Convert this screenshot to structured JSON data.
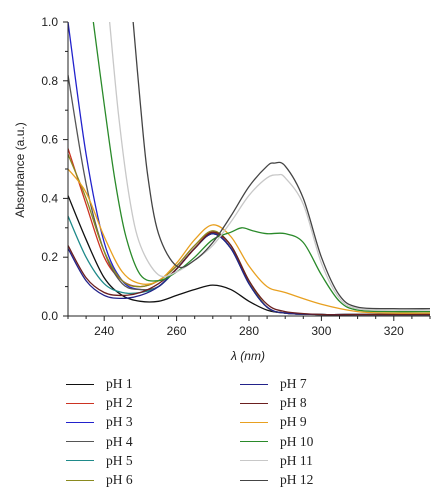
{
  "chart_data": {
    "type": "line",
    "xlabel": "λ (nm)",
    "ylabel": "Absorbance (a.u.)",
    "xlim": [
      230,
      330
    ],
    "ylim": [
      0,
      1.0
    ],
    "x_ticks": [
      240,
      260,
      280,
      300,
      320
    ],
    "y_ticks": [
      "0.0",
      "0.2",
      "0.4",
      "0.6",
      "0.8",
      "1.0"
    ],
    "grid": false,
    "legend_placement": "bottom",
    "series": [
      {
        "name": "pH 1",
        "color": "#111111",
        "x": [
          230,
          235,
          240,
          245,
          250,
          255,
          260,
          265,
          270,
          275,
          280,
          285,
          290,
          300,
          310,
          320,
          330
        ],
        "y": [
          0.41,
          0.26,
          0.13,
          0.07,
          0.05,
          0.05,
          0.07,
          0.09,
          0.105,
          0.09,
          0.05,
          0.02,
          0.01,
          0.005,
          0.005,
          0.005,
          0.005
        ]
      },
      {
        "name": "pH 2",
        "color": "#cc3322",
        "x": [
          230,
          235,
          240,
          245,
          250,
          255,
          260,
          265,
          270,
          275,
          280,
          285,
          290,
          300,
          310,
          320,
          330
        ],
        "y": [
          0.57,
          0.38,
          0.2,
          0.12,
          0.1,
          0.12,
          0.17,
          0.24,
          0.285,
          0.23,
          0.11,
          0.03,
          0.01,
          0.005,
          0.005,
          0.005,
          0.005
        ]
      },
      {
        "name": "pH 3",
        "color": "#2222cc",
        "x": [
          230,
          235,
          240,
          245,
          250,
          255,
          260,
          265,
          270,
          275,
          280,
          285,
          290,
          300,
          310,
          320,
          330
        ],
        "y": [
          1.0,
          0.55,
          0.25,
          0.12,
          0.09,
          0.1,
          0.16,
          0.23,
          0.28,
          0.23,
          0.11,
          0.03,
          0.01,
          0.005,
          0.005,
          0.005,
          0.005
        ]
      },
      {
        "name": "pH 4",
        "color": "#555555",
        "x": [
          230,
          235,
          240,
          245,
          250,
          255,
          260,
          265,
          270,
          275,
          280,
          285,
          290,
          300,
          310,
          320,
          330
        ],
        "y": [
          0.82,
          0.45,
          0.22,
          0.11,
          0.09,
          0.1,
          0.16,
          0.23,
          0.28,
          0.23,
          0.11,
          0.03,
          0.01,
          0.005,
          0.005,
          0.005,
          0.005
        ]
      },
      {
        "name": "pH 5",
        "color": "#1f8a8a",
        "x": [
          230,
          235,
          240,
          245,
          250,
          255,
          260,
          265,
          270,
          275,
          280,
          285,
          290,
          300,
          310,
          320,
          330
        ],
        "y": [
          0.34,
          0.2,
          0.11,
          0.08,
          0.08,
          0.1,
          0.16,
          0.23,
          0.28,
          0.23,
          0.11,
          0.03,
          0.01,
          0.005,
          0.005,
          0.005,
          0.005
        ]
      },
      {
        "name": "pH 6",
        "color": "#8a8a1f",
        "x": [
          230,
          235,
          240,
          245,
          250,
          255,
          260,
          265,
          270,
          275,
          280,
          285,
          290,
          300,
          310,
          320,
          330
        ],
        "y": [
          0.55,
          0.4,
          0.22,
          0.12,
          0.1,
          0.12,
          0.17,
          0.24,
          0.29,
          0.24,
          0.12,
          0.03,
          0.01,
          0.005,
          0.005,
          0.005,
          0.005
        ]
      },
      {
        "name": "pH 7",
        "color": "#22228a",
        "x": [
          230,
          235,
          240,
          245,
          250,
          255,
          260,
          265,
          270,
          275,
          280,
          285,
          290,
          300,
          310,
          320,
          330
        ],
        "y": [
          0.23,
          0.12,
          0.07,
          0.06,
          0.07,
          0.1,
          0.16,
          0.23,
          0.28,
          0.23,
          0.11,
          0.03,
          0.01,
          0.005,
          0.005,
          0.005,
          0.005
        ]
      },
      {
        "name": "pH 8",
        "color": "#6b1f1f",
        "x": [
          230,
          235,
          240,
          245,
          250,
          255,
          260,
          265,
          270,
          275,
          280,
          285,
          290,
          300,
          310,
          320,
          330
        ],
        "y": [
          0.24,
          0.13,
          0.08,
          0.07,
          0.08,
          0.11,
          0.16,
          0.23,
          0.285,
          0.24,
          0.12,
          0.04,
          0.015,
          0.005,
          0.005,
          0.005,
          0.005
        ]
      },
      {
        "name": "pH 9",
        "color": "#e8a020",
        "x": [
          230,
          235,
          240,
          245,
          250,
          255,
          260,
          265,
          270,
          275,
          280,
          285,
          290,
          300,
          310,
          320,
          330
        ],
        "y": [
          0.5,
          0.42,
          0.27,
          0.15,
          0.11,
          0.12,
          0.18,
          0.26,
          0.31,
          0.27,
          0.17,
          0.1,
          0.08,
          0.04,
          0.015,
          0.01,
          0.01
        ]
      },
      {
        "name": "pH 10",
        "color": "#2a8a2a",
        "x": [
          237,
          240,
          243,
          246,
          250,
          255,
          260,
          265,
          270,
          275,
          278,
          281,
          285,
          290,
          295,
          300,
          305,
          310,
          320,
          330
        ],
        "y": [
          1.0,
          0.72,
          0.46,
          0.27,
          0.14,
          0.12,
          0.15,
          0.2,
          0.26,
          0.285,
          0.3,
          0.29,
          0.28,
          0.28,
          0.25,
          0.14,
          0.05,
          0.02,
          0.015,
          0.015
        ]
      },
      {
        "name": "pH 11",
        "color": "#c8c8c8",
        "x": [
          241.5,
          244,
          247,
          250,
          255,
          260,
          265,
          270,
          275,
          280,
          285,
          288,
          290,
          295,
          300,
          305,
          310,
          320,
          330
        ],
        "y": [
          1.0,
          0.68,
          0.4,
          0.24,
          0.14,
          0.15,
          0.19,
          0.24,
          0.32,
          0.41,
          0.47,
          0.48,
          0.47,
          0.38,
          0.18,
          0.06,
          0.025,
          0.02,
          0.02
        ]
      },
      {
        "name": "pH 12",
        "color": "#444444",
        "x": [
          248,
          250,
          252,
          255,
          260,
          265,
          270,
          275,
          280,
          285,
          287,
          290,
          295,
          300,
          305,
          310,
          320,
          330
        ],
        "y": [
          1.0,
          0.72,
          0.48,
          0.28,
          0.17,
          0.19,
          0.25,
          0.34,
          0.44,
          0.51,
          0.52,
          0.51,
          0.4,
          0.2,
          0.07,
          0.03,
          0.025,
          0.025
        ]
      }
    ]
  }
}
